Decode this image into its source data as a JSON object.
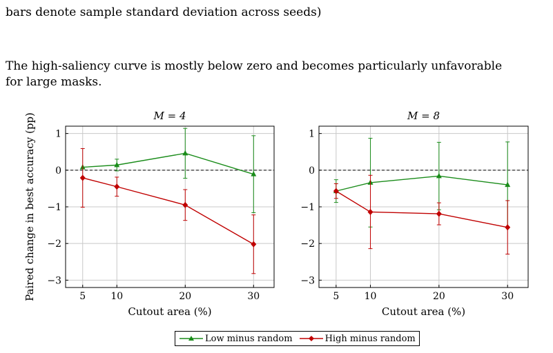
{
  "caption_tail": "bars denote sample standard deviation across seeds)",
  "paragraph": {
    "line1": "The high-saliency curve is mostly below zero and becomes particularly unfavorable",
    "line2": "for large masks."
  },
  "colors": {
    "low": "#1a8c1a",
    "high": "#c00000",
    "grid": "#c8c8c8",
    "zero": "#000000"
  },
  "chart_data": [
    {
      "type": "line",
      "title": "M = 4",
      "xlabel": "Cutout area (%)",
      "ylabel": "Paired change in best accuracy (pp)",
      "x": [
        5,
        10,
        20,
        30
      ],
      "x_ticks": [
        "5",
        "10",
        "20",
        "30"
      ],
      "xlim": [
        2.5,
        33
      ],
      "ylim": [
        -3.2,
        1.2
      ],
      "y_ticks": [
        "1",
        "0",
        "−1",
        "−2",
        "−3"
      ],
      "y_tick_values": [
        1,
        0,
        -1,
        -2,
        -3
      ],
      "grid": true,
      "zero_line": true,
      "series": [
        {
          "name": "Low minus random",
          "marker": "triangle",
          "values": [
            0.08,
            0.14,
            0.46,
            -0.11
          ],
          "err": [
            0.0,
            0.16,
            0.68,
            1.05
          ]
        },
        {
          "name": "High minus random",
          "marker": "diamond",
          "values": [
            -0.21,
            -0.45,
            -0.95,
            -2.02
          ],
          "err": [
            0.8,
            0.26,
            0.42,
            0.8
          ]
        }
      ]
    },
    {
      "type": "line",
      "title": "M = 8",
      "xlabel": "Cutout area (%)",
      "ylabel": "",
      "x": [
        5,
        10,
        20,
        30
      ],
      "x_ticks": [
        "5",
        "10",
        "20",
        "30"
      ],
      "xlim": [
        2.5,
        33
      ],
      "ylim": [
        -3.2,
        1.2
      ],
      "y_ticks": [
        "1",
        "0",
        "−1",
        "−2",
        "−3"
      ],
      "y_tick_values": [
        1,
        0,
        -1,
        -2,
        -3
      ],
      "grid": true,
      "zero_line": true,
      "series": [
        {
          "name": "Low minus random",
          "marker": "triangle",
          "values": [
            -0.57,
            -0.34,
            -0.16,
            -0.4
          ],
          "err": [
            0.31,
            1.21,
            0.92,
            1.17
          ]
        },
        {
          "name": "High minus random",
          "marker": "diamond",
          "values": [
            -0.57,
            -1.14,
            -1.19,
            -1.56
          ],
          "err": [
            0.2,
            1.0,
            0.3,
            0.73
          ]
        }
      ]
    }
  ],
  "legend": {
    "placement": "bottom-center",
    "items": [
      {
        "label": "Low minus random",
        "marker": "triangle"
      },
      {
        "label": "High minus random",
        "marker": "diamond"
      }
    ]
  }
}
